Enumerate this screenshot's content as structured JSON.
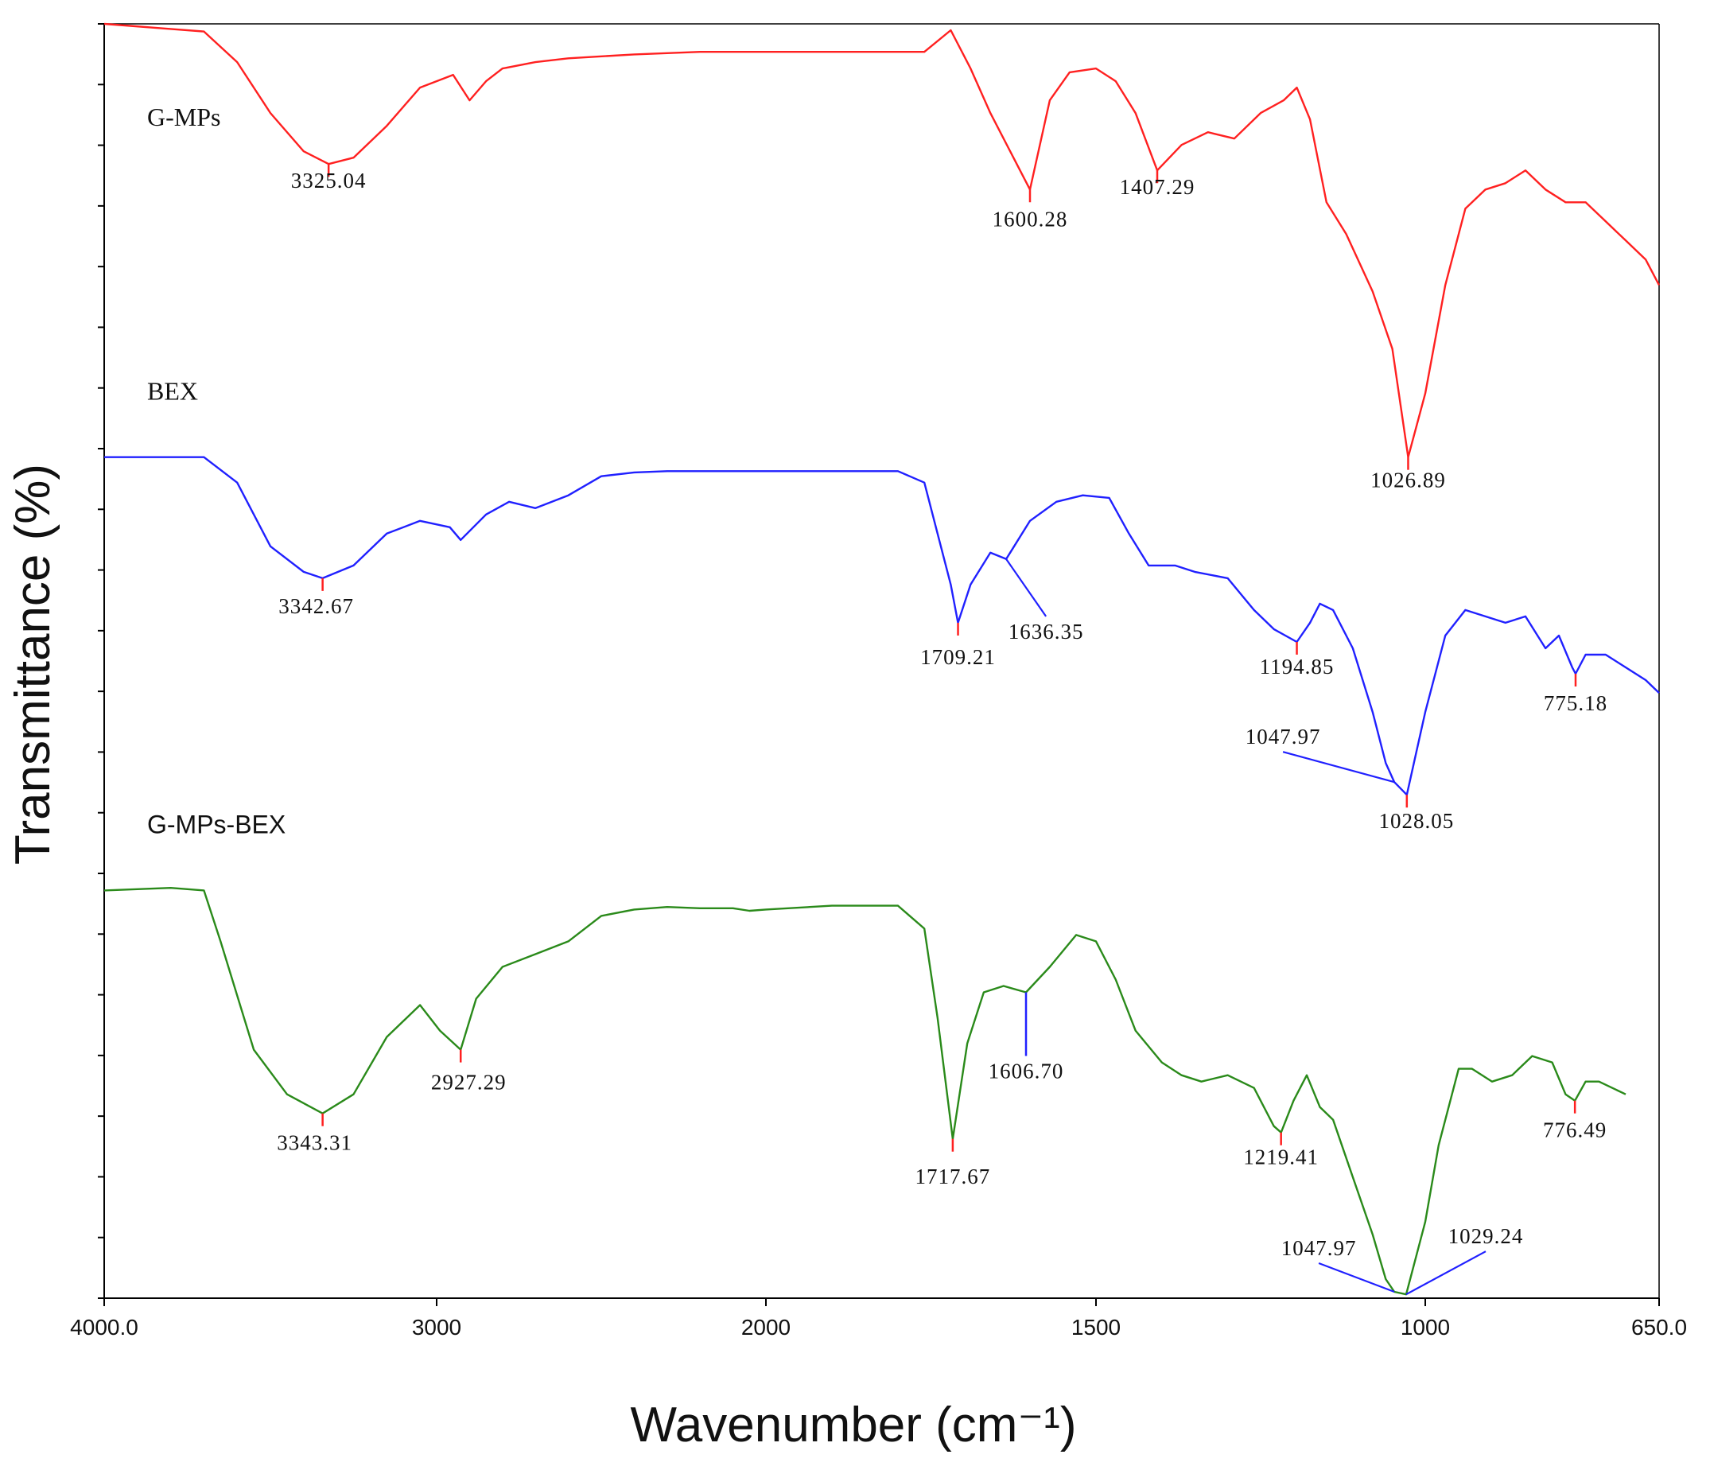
{
  "chart_data": {
    "type": "line",
    "xlabel": "Wavenumber (cm⁻¹)",
    "ylabel": "Transmittance (%)",
    "xlim": [
      4000.0,
      650.0
    ],
    "x_reversed": true,
    "x_tick_labels": [
      "4000.0",
      "3000",
      "2000",
      "1500",
      "1000",
      "650.0"
    ],
    "x_tick_values": [
      4000,
      3000,
      2000,
      1500,
      1000,
      650
    ],
    "ylim": [
      0,
      100
    ],
    "y_tick_labels_shown": false,
    "grid": false,
    "legend": "none (series labelled inline)",
    "series": [
      {
        "name": "G-MPs",
        "color": "#ff2020",
        "x": [
          4000,
          3800,
          3700,
          3600,
          3500,
          3400,
          3325,
          3250,
          3150,
          3050,
          2950,
          2900,
          2850,
          2800,
          2700,
          2600,
          2400,
          2200,
          2000,
          1850,
          1760,
          1720,
          1690,
          1660,
          1630,
          1600,
          1570,
          1540,
          1500,
          1470,
          1440,
          1407,
          1370,
          1330,
          1290,
          1250,
          1215,
          1195,
          1175,
          1150,
          1120,
          1080,
          1050,
          1026,
          1000,
          970,
          940,
          910,
          880,
          850,
          820,
          790,
          760,
          730,
          700,
          670,
          650
        ],
        "y": [
          100.0,
          99.6,
          99.4,
          97.0,
          93.0,
          90.0,
          89.0,
          89.5,
          92.0,
          95.0,
          96.0,
          94.0,
          95.5,
          96.5,
          97.0,
          97.3,
          97.6,
          97.8,
          97.8,
          97.8,
          97.8,
          99.5,
          96.5,
          93.0,
          90.0,
          87.0,
          94.0,
          96.2,
          96.5,
          95.5,
          93.0,
          88.5,
          90.5,
          91.5,
          91.0,
          93.0,
          94.0,
          95.0,
          92.5,
          86.0,
          83.5,
          79.0,
          74.5,
          66.0,
          71.0,
          79.5,
          85.5,
          87.0,
          87.5,
          88.5,
          87.0,
          86.0,
          86.0,
          84.5,
          83.0,
          81.5,
          79.5
        ]
      },
      {
        "name": "BEX",
        "color": "#2020ff",
        "x": [
          4000,
          3800,
          3700,
          3600,
          3500,
          3400,
          3343,
          3250,
          3150,
          3050,
          2960,
          2927,
          2850,
          2780,
          2700,
          2600,
          2500,
          2400,
          2300,
          2200,
          2100,
          2000,
          1900,
          1800,
          1760,
          1740,
          1720,
          1709,
          1690,
          1660,
          1636,
          1600,
          1560,
          1520,
          1480,
          1450,
          1420,
          1380,
          1350,
          1300,
          1260,
          1230,
          1195,
          1175,
          1160,
          1140,
          1110,
          1080,
          1060,
          1047,
          1028,
          1000,
          970,
          940,
          910,
          880,
          850,
          820,
          800,
          780,
          775,
          760,
          730,
          700,
          670,
          650
        ],
        "y": [
          66.0,
          66.0,
          66.0,
          64.0,
          59.0,
          57.0,
          56.5,
          57.5,
          60.0,
          61.0,
          60.5,
          59.5,
          61.5,
          62.5,
          62.0,
          63.0,
          64.5,
          64.8,
          64.9,
          64.9,
          64.9,
          64.9,
          64.9,
          64.9,
          64.0,
          60.0,
          56.0,
          53.0,
          56.0,
          58.5,
          58.0,
          61.0,
          62.5,
          63.0,
          62.8,
          60.0,
          57.5,
          57.5,
          57.0,
          56.5,
          54.0,
          52.5,
          51.5,
          53.0,
          54.5,
          54.0,
          51.0,
          46.0,
          42.0,
          40.5,
          39.5,
          46.0,
          52.0,
          54.0,
          53.5,
          53.0,
          53.5,
          51.0,
          52.0,
          49.5,
          49.0,
          50.5,
          50.5,
          49.5,
          48.5,
          47.5
        ]
      },
      {
        "name": "G-MPs-BEX",
        "color": "#2a8a1a",
        "x": [
          4000,
          3800,
          3700,
          3650,
          3550,
          3450,
          3343,
          3250,
          3150,
          3050,
          2990,
          2927,
          2880,
          2800,
          2700,
          2600,
          2500,
          2400,
          2300,
          2200,
          2100,
          2050,
          2000,
          1900,
          1800,
          1760,
          1740,
          1717,
          1695,
          1670,
          1640,
          1606,
          1570,
          1530,
          1500,
          1470,
          1440,
          1400,
          1370,
          1340,
          1300,
          1260,
          1230,
          1219,
          1200,
          1180,
          1160,
          1140,
          1110,
          1080,
          1060,
          1047,
          1029,
          1000,
          980,
          950,
          930,
          900,
          870,
          840,
          810,
          790,
          776,
          760,
          740,
          720,
          700
        ],
        "y": [
          32.0,
          32.2,
          32.0,
          28.0,
          19.5,
          16.0,
          14.5,
          16.0,
          20.5,
          23.0,
          21.0,
          19.5,
          23.5,
          26.0,
          27.0,
          28.0,
          30.0,
          30.5,
          30.7,
          30.6,
          30.6,
          30.4,
          30.5,
          30.8,
          30.8,
          29.0,
          22.0,
          12.5,
          20.0,
          24.0,
          24.5,
          24.0,
          26.0,
          28.5,
          28.0,
          25.0,
          21.0,
          18.5,
          17.5,
          17.0,
          17.5,
          16.5,
          13.5,
          13.0,
          15.5,
          17.5,
          15.0,
          14.0,
          9.5,
          5.0,
          1.5,
          0.5,
          0.3,
          6.0,
          12.0,
          18.0,
          18.0,
          17.0,
          17.5,
          19.0,
          18.5,
          16.0,
          15.5,
          17.0,
          17.0,
          16.5,
          16.0
        ]
      }
    ],
    "series_label_y": [
      92,
      70.5,
      36.5
    ],
    "annotations": [
      {
        "text": "3325.04",
        "series": 0,
        "at": 3325
      },
      {
        "text": "1600.28",
        "series": 0,
        "at": 1600
      },
      {
        "text": "1407.29",
        "series": 0,
        "at": 1407
      },
      {
        "text": "1026.89",
        "series": 0,
        "at": 1026
      },
      {
        "text": "3342.67",
        "series": 1,
        "at": 3343
      },
      {
        "text": "1709.21",
        "series": 1,
        "at": 1709
      },
      {
        "text": "1636.35",
        "series": 1,
        "at": 1636
      },
      {
        "text": "1194.85",
        "series": 1,
        "at": 1195
      },
      {
        "text": "775.18",
        "series": 1,
        "at": 775
      },
      {
        "text": "1047.97",
        "series": 1,
        "at": 1047
      },
      {
        "text": "1028.05",
        "series": 1,
        "at": 1028
      },
      {
        "text": "3343.31",
        "series": 2,
        "at": 3343
      },
      {
        "text": "2927.29",
        "series": 2,
        "at": 2927
      },
      {
        "text": "1717.67",
        "series": 2,
        "at": 1717
      },
      {
        "text": "1606.70",
        "series": 2,
        "at": 1606
      },
      {
        "text": "1219.41",
        "series": 2,
        "at": 1219
      },
      {
        "text": "776.49",
        "series": 2,
        "at": 776
      },
      {
        "text": "1047.97",
        "series": 2,
        "at": 1047
      },
      {
        "text": "1029.24",
        "series": 2,
        "at": 1029
      }
    ],
    "marker_colors": {
      "tick_marker": "#ff2020",
      "leader_line": "#2020ff"
    }
  }
}
